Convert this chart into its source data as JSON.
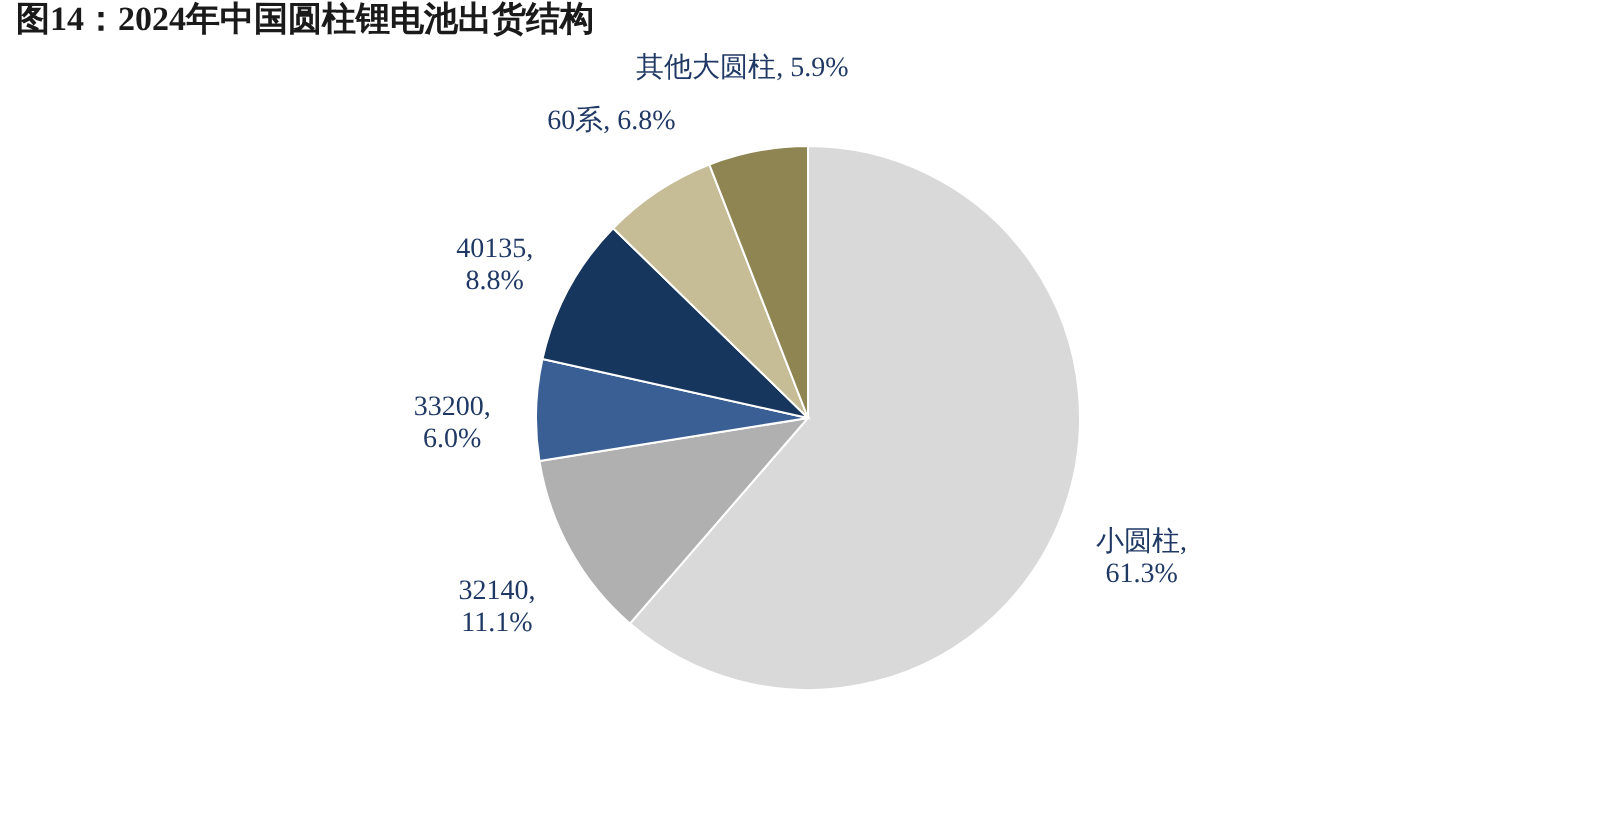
{
  "chart_data": {
    "type": "pie",
    "title": "图14：2024年中国圆柱锂电池出货结构",
    "categories": [
      "小圆柱",
      "32140",
      "33200",
      "40135",
      "60系",
      "其他大圆柱"
    ],
    "values": [
      61.3,
      11.1,
      6.0,
      8.8,
      6.8,
      5.9
    ],
    "colors": [
      "#d9d9d9",
      "#b0b0b0",
      "#3a5f94",
      "#17365d",
      "#c6bd97",
      "#8f8552"
    ],
    "value_labels": [
      ", 61.3%",
      ", 11.1%",
      ", 6.0%",
      ", 8.8%",
      ", 6.8%",
      ", 5.9%"
    ],
    "legend": false
  }
}
